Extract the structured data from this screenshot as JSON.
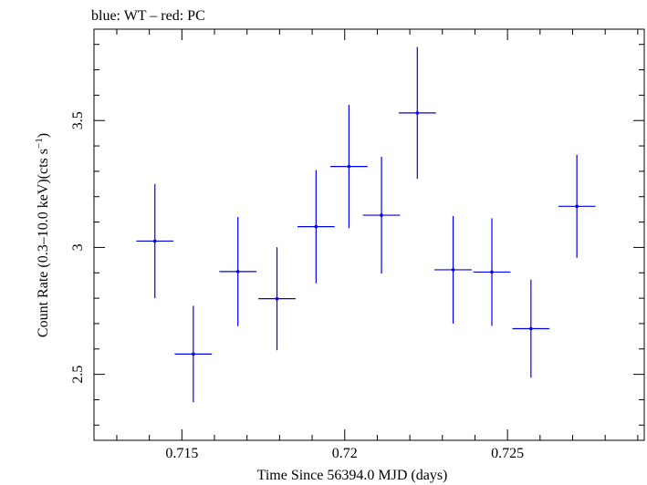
{
  "chart_data": {
    "type": "scatter",
    "title": "blue: WT – red: PC",
    "xlabel": "Time Since 56394.0 MJD (days)",
    "ylabel_main": "Count Rate (0.3–10.0 keV)(cts s",
    "ylabel_sup": "−1",
    "ylabel_close": ")",
    "xlim": [
      0.7123,
      0.7292
    ],
    "ylim": [
      2.24,
      3.86
    ],
    "x_ticks": [
      {
        "value": 0.715,
        "label": "0.715"
      },
      {
        "value": 0.72,
        "label": "0.72"
      },
      {
        "value": 0.725,
        "label": "0.725"
      }
    ],
    "y_ticks": [
      {
        "value": 2.5,
        "label": "2.5"
      },
      {
        "value": 3.0,
        "label": "3"
      },
      {
        "value": 3.5,
        "label": "3.5"
      }
    ],
    "x_minor_step": 0.001,
    "y_minor_step": 0.1,
    "grid": false,
    "series": [
      {
        "color": "#0000ee",
        "points": [
          {
            "x": 0.71417,
            "xerr": 0.00057,
            "y": 3.025,
            "yerr": 0.225
          },
          {
            "x": 0.71535,
            "xerr": 0.00057,
            "y": 2.58,
            "yerr": 0.19
          },
          {
            "x": 0.71672,
            "xerr": 0.00057,
            "y": 2.905,
            "yerr": 0.215
          },
          {
            "x": 0.71792,
            "xerr": 0.00057,
            "y": 2.798,
            "yerr": 0.203
          },
          {
            "x": 0.71912,
            "xerr": 0.00057,
            "y": 3.082,
            "yerr": 0.223
          },
          {
            "x": 0.72013,
            "xerr": 0.00057,
            "y": 3.319,
            "yerr": 0.243
          },
          {
            "x": 0.72113,
            "xerr": 0.00057,
            "y": 3.127,
            "yerr": 0.23
          },
          {
            "x": 0.72223,
            "xerr": 0.00057,
            "y": 3.53,
            "yerr": 0.26
          },
          {
            "x": 0.72333,
            "xerr": 0.00057,
            "y": 2.912,
            "yerr": 0.212
          },
          {
            "x": 0.72452,
            "xerr": 0.00057,
            "y": 2.903,
            "yerr": 0.212
          },
          {
            "x": 0.72572,
            "xerr": 0.00057,
            "y": 2.68,
            "yerr": 0.193
          },
          {
            "x": 0.72713,
            "xerr": 0.00057,
            "y": 3.162,
            "yerr": 0.203
          }
        ]
      }
    ]
  }
}
